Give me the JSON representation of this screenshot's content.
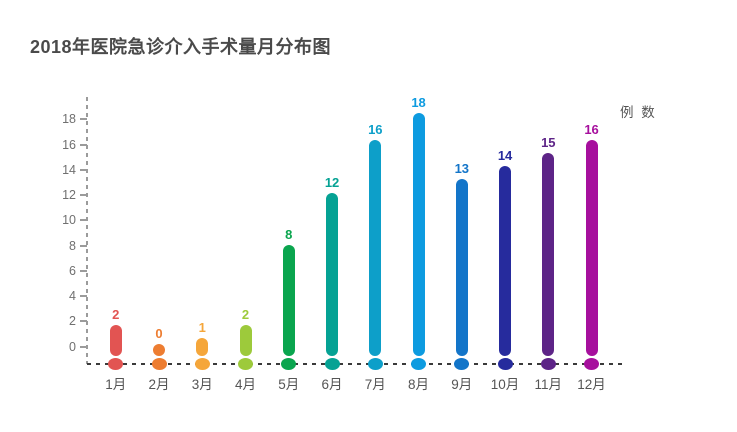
{
  "title": "2018年医院急诊介入手术量月分布图",
  "unit_label": "例 数",
  "chart_data": {
    "type": "bar",
    "style": "capsule-lollipop",
    "title": "2018年医院急诊介入手术量月分布图",
    "ylabel": "例 数",
    "xlabel": "",
    "categories": [
      "1月",
      "2月",
      "3月",
      "4月",
      "5月",
      "6月",
      "7月",
      "8月",
      "9月",
      "10月",
      "11月",
      "12月"
    ],
    "values": [
      2,
      0,
      1,
      2,
      8,
      12,
      16,
      18,
      13,
      14,
      15,
      16
    ],
    "bar_colors": [
      "#e25452",
      "#ed7d31",
      "#f5a63a",
      "#9dca3b",
      "#0aa54e",
      "#05a294",
      "#0d9fc9",
      "#0d9be0",
      "#1375c9",
      "#262b9d",
      "#5d2487",
      "#a60f9d"
    ],
    "y_ticks": [
      0,
      2,
      4,
      6,
      8,
      10,
      12,
      14,
      16,
      18
    ],
    "ylim": [
      0,
      19
    ],
    "grid": false,
    "axis_style": "dashed",
    "legend": "none",
    "colors": {
      "title_text": "#4a4a4a",
      "tick_label_text": "#707070",
      "month_label_text": "#555555",
      "unit_label_text": "#555555",
      "y_axis_line": "#9b9b9b",
      "x_baseline": "#3a3a3a",
      "background": "#ffffff"
    }
  }
}
